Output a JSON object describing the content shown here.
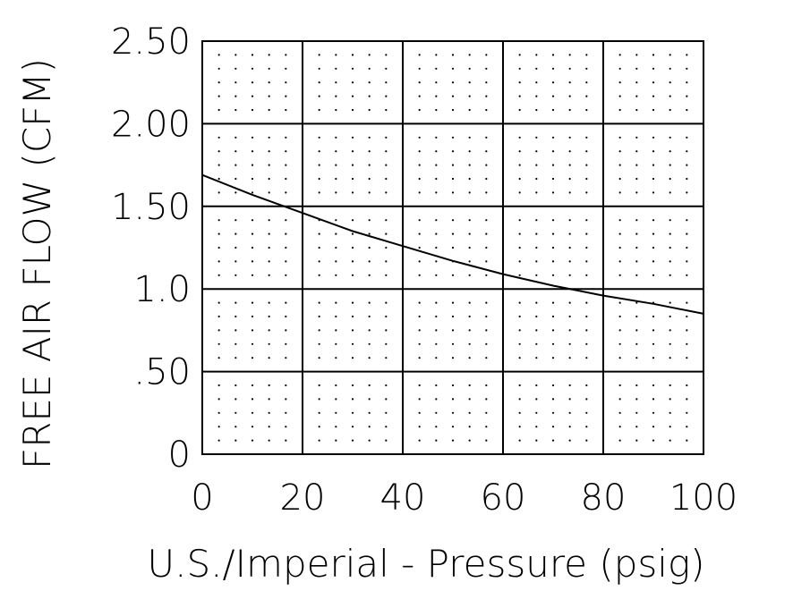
{
  "chart_data": {
    "type": "line",
    "xlabel": "U.S./Imperial - Pressure (psig)",
    "ylabel": "FREE AIR FLOW (CFM)",
    "xlim": [
      0,
      100
    ],
    "ylim": [
      0,
      2.5
    ],
    "x_ticks": [
      0,
      20,
      40,
      60,
      80,
      100
    ],
    "x_tick_labels": [
      "0",
      "20",
      "40",
      "60",
      "80",
      "100"
    ],
    "y_ticks": [
      0,
      0.5,
      1.0,
      1.5,
      2.0,
      2.5
    ],
    "y_tick_labels": [
      "0",
      ".50",
      "1.0",
      "1.50",
      "2.00",
      "2.50"
    ],
    "grid": true,
    "minor_dot_grid": true,
    "series": [
      {
        "color": "#000000",
        "x": [
          0,
          10,
          20,
          30,
          40,
          50,
          60,
          70,
          80,
          90,
          100
        ],
        "y": [
          1.69,
          1.57,
          1.46,
          1.35,
          1.26,
          1.17,
          1.09,
          1.02,
          0.96,
          0.91,
          0.85
        ]
      }
    ]
  }
}
